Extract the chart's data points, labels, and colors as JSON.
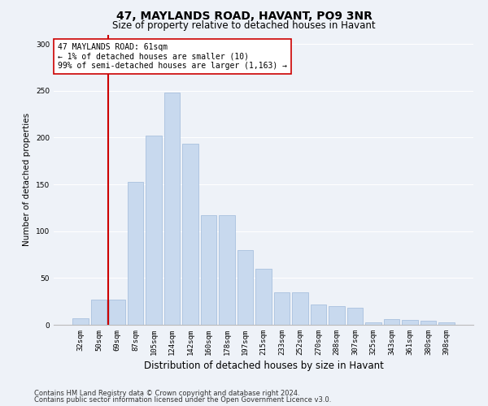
{
  "title": "47, MAYLANDS ROAD, HAVANT, PO9 3NR",
  "subtitle": "Size of property relative to detached houses in Havant",
  "xlabel": "Distribution of detached houses by size in Havant",
  "ylabel": "Number of detached properties",
  "categories": [
    "32sqm",
    "50sqm",
    "69sqm",
    "87sqm",
    "105sqm",
    "124sqm",
    "142sqm",
    "160sqm",
    "178sqm",
    "197sqm",
    "215sqm",
    "233sqm",
    "252sqm",
    "270sqm",
    "288sqm",
    "307sqm",
    "325sqm",
    "343sqm",
    "361sqm",
    "380sqm",
    "398sqm"
  ],
  "values": [
    7,
    27,
    27,
    153,
    202,
    248,
    193,
    117,
    117,
    80,
    60,
    35,
    35,
    22,
    20,
    18,
    3,
    6,
    5,
    4,
    3
  ],
  "bar_color": "#c8d9ee",
  "bar_edge_color": "#a8c0de",
  "vline_color": "#cc0000",
  "annotation_text": "47 MAYLANDS ROAD: 61sqm\n← 1% of detached houses are smaller (10)\n99% of semi-detached houses are larger (1,163) →",
  "annotation_box_color": "#ffffff",
  "annotation_box_edge": "#cc0000",
  "ylim": [
    0,
    310
  ],
  "yticks": [
    0,
    50,
    100,
    150,
    200,
    250,
    300
  ],
  "footer_line1": "Contains HM Land Registry data © Crown copyright and database right 2024.",
  "footer_line2": "Contains public sector information licensed under the Open Government Licence v3.0.",
  "bg_color": "#eef2f8",
  "plot_bg_color": "#eef2f8",
  "grid_color": "#ffffff",
  "title_fontsize": 10,
  "subtitle_fontsize": 8.5,
  "xlabel_fontsize": 8.5,
  "ylabel_fontsize": 7.5,
  "tick_fontsize": 6.5,
  "ann_fontsize": 7,
  "footer_fontsize": 6
}
